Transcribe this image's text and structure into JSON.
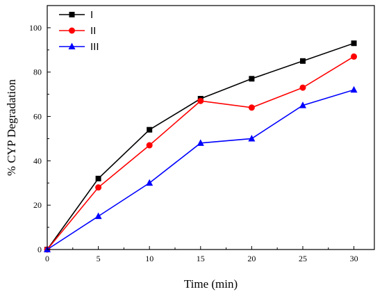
{
  "chart_data": {
    "type": "line",
    "title": "",
    "xlabel": "Time (min)",
    "ylabel": "% CYP Degradation",
    "xlim": [
      0,
      32
    ],
    "ylim": [
      0,
      110
    ],
    "xticks": [
      0,
      5,
      10,
      15,
      20,
      25,
      30
    ],
    "yticks": [
      0,
      20,
      40,
      60,
      80,
      100
    ],
    "grid": false,
    "legend_position": "top-left",
    "x": [
      0,
      5,
      10,
      15,
      20,
      25,
      30
    ],
    "series": [
      {
        "name": "I",
        "color": "#000000",
        "marker": "square",
        "values": [
          0,
          32,
          54,
          68,
          77,
          85,
          93
        ]
      },
      {
        "name": "II",
        "color": "#ff0000",
        "marker": "circle",
        "values": [
          0,
          28,
          47,
          67,
          64,
          73,
          87
        ]
      },
      {
        "name": "III",
        "color": "#0000ff",
        "marker": "triangle",
        "values": [
          0,
          15,
          30,
          48,
          50,
          65,
          72
        ]
      }
    ]
  }
}
